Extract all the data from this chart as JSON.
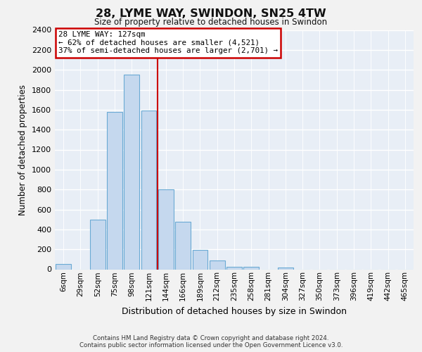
{
  "title": "28, LYME WAY, SWINDON, SN25 4TW",
  "subtitle": "Size of property relative to detached houses in Swindon",
  "xlabel": "Distribution of detached houses by size in Swindon",
  "ylabel": "Number of detached properties",
  "categories": [
    "6sqm",
    "29sqm",
    "52sqm",
    "75sqm",
    "98sqm",
    "121sqm",
    "144sqm",
    "166sqm",
    "189sqm",
    "212sqm",
    "235sqm",
    "258sqm",
    "281sqm",
    "304sqm",
    "327sqm",
    "350sqm",
    "373sqm",
    "396sqm",
    "419sqm",
    "442sqm",
    "465sqm"
  ],
  "values": [
    50,
    0,
    500,
    1580,
    1950,
    1590,
    800,
    480,
    195,
    90,
    25,
    25,
    0,
    20,
    0,
    0,
    0,
    0,
    0,
    0,
    0
  ],
  "bar_color": "#c5d8ee",
  "bar_edge_color": "#6aaad4",
  "annotation_title": "28 LYME WAY: 127sqm",
  "annotation_line1": "← 62% of detached houses are smaller (4,521)",
  "annotation_line2": "37% of semi-detached houses are larger (2,701) →",
  "line_color": "#cc0000",
  "ylim_max": 2400,
  "ytick_step": 200,
  "bg_color": "#e8eef6",
  "grid_color": "#ffffff",
  "fig_bg_color": "#f2f2f2",
  "footer_line1": "Contains HM Land Registry data © Crown copyright and database right 2024.",
  "footer_line2": "Contains public sector information licensed under the Open Government Licence v3.0."
}
